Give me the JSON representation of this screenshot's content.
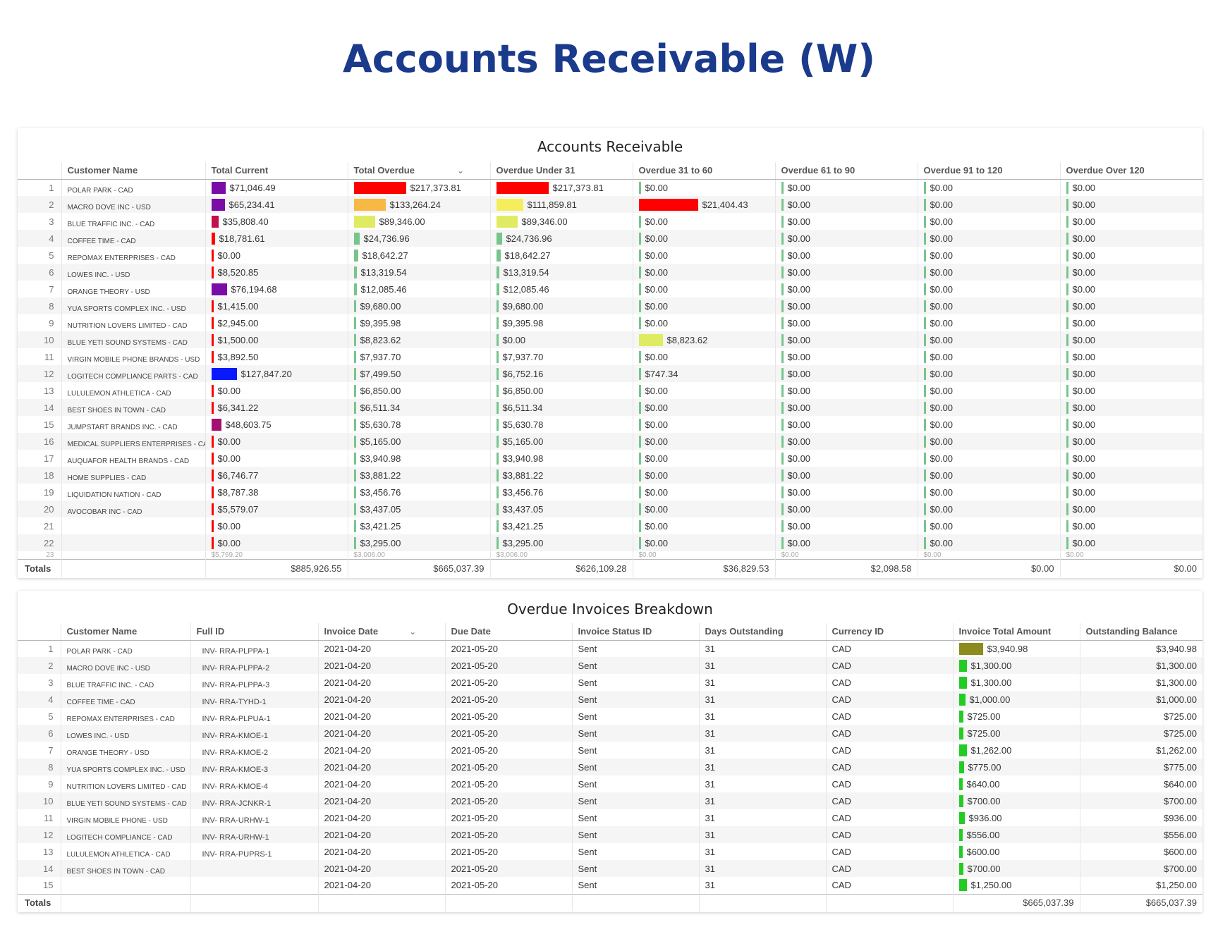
{
  "page": {
    "title": "Accounts Receivable (W)"
  },
  "colors": {
    "title": "#1a3a8c",
    "purple": "#7a0da6",
    "crimson": "#c0114b",
    "red": "#ff0000",
    "orange": "#f7b944",
    "yellow": "#f5ee5a",
    "lime": "#dfeb62",
    "green": "#77c58b",
    "blue": "#0a18ff",
    "magenta": "#a50f70",
    "olive": "#8b8b1e",
    "bright_green": "#22cc22"
  },
  "ar": {
    "title": "Accounts Receivable",
    "headers": [
      "Customer Name",
      "Total Current",
      "Total Overdue",
      "Overdue Under 31",
      "Overdue 31 to 60",
      "Overdue 61 to 90",
      "Overdue 91 to 120",
      "Overdue Over 120"
    ],
    "sort_icon": "chevron-down-icon",
    "rows": [
      {
        "n": "1",
        "name": "POLAR PARK - CAD",
        "tc": {
          "v": "$71,046.49",
          "w": 0.28,
          "c": "purple"
        },
        "to": {
          "v": "$217,373.81",
          "w": 1.0,
          "c": "red"
        },
        "u31": {
          "v": "$217,373.81",
          "w": 1.0,
          "c": "red"
        },
        "o60": {
          "v": "$0.00",
          "w": 0.01,
          "c": "green"
        },
        "o90": "$0.00",
        "o120": "$0.00",
        "over": "$0.00"
      },
      {
        "n": "2",
        "name": "MACRO DOVE INC - USD",
        "tc": {
          "v": "$65,234.41",
          "w": 0.26,
          "c": "purple"
        },
        "to": {
          "v": "$133,264.24",
          "w": 0.61,
          "c": "orange"
        },
        "u31": {
          "v": "$111,859.81",
          "w": 0.51,
          "c": "yellow"
        },
        "o60": {
          "v": "$21,404.43",
          "w": 1.0,
          "c": "red"
        },
        "o90": "$0.00",
        "o120": "$0.00",
        "over": "$0.00"
      },
      {
        "n": "3",
        "name": "BLUE TRAFFIC INC. - CAD",
        "tc": {
          "v": "$35,808.40",
          "w": 0.14,
          "c": "crimson"
        },
        "to": {
          "v": "$89,346.00",
          "w": 0.41,
          "c": "lime"
        },
        "u31": {
          "v": "$89,346.00",
          "w": 0.41,
          "c": "lime"
        },
        "o60": {
          "v": "$0.00",
          "w": 0.01,
          "c": "green"
        },
        "o90": "$0.00",
        "o120": "$0.00",
        "over": "$0.00"
      },
      {
        "n": "4",
        "name": "COFFEE TIME - CAD",
        "tc": {
          "v": "$18,781.61",
          "w": 0.07,
          "c": "red"
        },
        "to": {
          "v": "$24,736.96",
          "w": 0.11,
          "c": "green"
        },
        "u31": {
          "v": "$24,736.96",
          "w": 0.11,
          "c": "green"
        },
        "o60": {
          "v": "$0.00",
          "w": 0.01,
          "c": "green"
        },
        "o90": "$0.00",
        "o120": "$0.00",
        "over": "$0.00"
      },
      {
        "n": "5",
        "name": "REPOMAX ENTERPRISES - CAD",
        "tc": {
          "v": "$0.00",
          "w": 0.0,
          "c": "red"
        },
        "to": {
          "v": "$18,642.27",
          "w": 0.08,
          "c": "green"
        },
        "u31": {
          "v": "$18,642.27",
          "w": 0.08,
          "c": "green"
        },
        "o60": {
          "v": "$0.00",
          "w": 0.01,
          "c": "green"
        },
        "o90": "$0.00",
        "o120": "$0.00",
        "over": "$0.00"
      },
      {
        "n": "6",
        "name": "LOWES INC. - USD",
        "tc": {
          "v": "$8,520.85",
          "w": 0.03,
          "c": "red"
        },
        "to": {
          "v": "$13,319.54",
          "w": 0.06,
          "c": "green"
        },
        "u31": {
          "v": "$13,319.54",
          "w": 0.06,
          "c": "green"
        },
        "o60": {
          "v": "$0.00",
          "w": 0.01,
          "c": "green"
        },
        "o90": "$0.00",
        "o120": "$0.00",
        "over": "$0.00"
      },
      {
        "n": "7",
        "name": "ORANGE THEORY - USD",
        "tc": {
          "v": "$76,194.68",
          "w": 0.3,
          "c": "purple"
        },
        "to": {
          "v": "$12,085.46",
          "w": 0.05,
          "c": "green"
        },
        "u31": {
          "v": "$12,085.46",
          "w": 0.05,
          "c": "green"
        },
        "o60": {
          "v": "$0.00",
          "w": 0.01,
          "c": "green"
        },
        "o90": "$0.00",
        "o120": "$0.00",
        "over": "$0.00"
      },
      {
        "n": "8",
        "name": "YUA SPORTS COMPLEX INC. - USD",
        "tc": {
          "v": "$1,415.00",
          "w": 0.01,
          "c": "red"
        },
        "to": {
          "v": "$9,680.00",
          "w": 0.04,
          "c": "green"
        },
        "u31": {
          "v": "$9,680.00",
          "w": 0.04,
          "c": "green"
        },
        "o60": {
          "v": "$0.00",
          "w": 0.01,
          "c": "green"
        },
        "o90": "$0.00",
        "o120": "$0.00",
        "over": "$0.00"
      },
      {
        "n": "9",
        "name": "NUTRITION LOVERS LIMITED - CAD",
        "tc": {
          "v": "$2,945.00",
          "w": 0.01,
          "c": "red"
        },
        "to": {
          "v": "$9,395.98",
          "w": 0.04,
          "c": "green"
        },
        "u31": {
          "v": "$9,395.98",
          "w": 0.04,
          "c": "green"
        },
        "o60": {
          "v": "$0.00",
          "w": 0.01,
          "c": "green"
        },
        "o90": "$0.00",
        "o120": "$0.00",
        "over": "$0.00"
      },
      {
        "n": "10",
        "name": "BLUE YETI SOUND SYSTEMS - CAD",
        "tc": {
          "v": "$1,500.00",
          "w": 0.01,
          "c": "red"
        },
        "to": {
          "v": "$8,823.62",
          "w": 0.04,
          "c": "green"
        },
        "u31": {
          "v": "$0.00",
          "w": 0.01,
          "c": "green"
        },
        "o60": {
          "v": "$8,823.62",
          "w": 0.41,
          "c": "lime"
        },
        "o90": "$0.00",
        "o120": "$0.00",
        "over": "$0.00"
      },
      {
        "n": "11",
        "name": "VIRGIN MOBILE PHONE BRANDS - USD",
        "tc": {
          "v": "$3,892.50",
          "w": 0.02,
          "c": "red"
        },
        "to": {
          "v": "$7,937.70",
          "w": 0.04,
          "c": "green"
        },
        "u31": {
          "v": "$7,937.70",
          "w": 0.04,
          "c": "green"
        },
        "o60": {
          "v": "$0.00",
          "w": 0.01,
          "c": "green"
        },
        "o90": "$0.00",
        "o120": "$0.00",
        "over": "$0.00"
      },
      {
        "n": "12",
        "name": "LOGITECH COMPLIANCE PARTS - CAD",
        "tc": {
          "v": "$127,847.20",
          "w": 0.5,
          "c": "blue"
        },
        "to": {
          "v": "$7,499.50",
          "w": 0.03,
          "c": "green"
        },
        "u31": {
          "v": "$6,752.16",
          "w": 0.03,
          "c": "green"
        },
        "o60": {
          "v": "$747.34",
          "w": 0.03,
          "c": "green"
        },
        "o90": "$0.00",
        "o120": "$0.00",
        "over": "$0.00"
      },
      {
        "n": "13",
        "name": "LULULEMON ATHLETICA - CAD",
        "tc": {
          "v": "$0.00",
          "w": 0.0,
          "c": "red"
        },
        "to": {
          "v": "$6,850.00",
          "w": 0.03,
          "c": "green"
        },
        "u31": {
          "v": "$6,850.00",
          "w": 0.03,
          "c": "green"
        },
        "o60": {
          "v": "$0.00",
          "w": 0.01,
          "c": "green"
        },
        "o90": "$0.00",
        "o120": "$0.00",
        "over": "$0.00"
      },
      {
        "n": "14",
        "name": "BEST SHOES IN TOWN - CAD",
        "tc": {
          "v": "$6,341.22",
          "w": 0.02,
          "c": "red"
        },
        "to": {
          "v": "$6,511.34",
          "w": 0.03,
          "c": "green"
        },
        "u31": {
          "v": "$6,511.34",
          "w": 0.03,
          "c": "green"
        },
        "o60": {
          "v": "$0.00",
          "w": 0.01,
          "c": "green"
        },
        "o90": "$0.00",
        "o120": "$0.00",
        "over": "$0.00"
      },
      {
        "n": "15",
        "name": "JUMPSTART BRANDS INC. - CAD",
        "tc": {
          "v": "$48,603.75",
          "w": 0.19,
          "c": "magenta"
        },
        "to": {
          "v": "$5,630.78",
          "w": 0.03,
          "c": "green"
        },
        "u31": {
          "v": "$5,630.78",
          "w": 0.03,
          "c": "green"
        },
        "o60": {
          "v": "$0.00",
          "w": 0.01,
          "c": "green"
        },
        "o90": "$0.00",
        "o120": "$0.00",
        "over": "$0.00"
      },
      {
        "n": "16",
        "name": "MEDICAL SUPPLIERS ENTERPRISES - CAD",
        "tc": {
          "v": "$0.00",
          "w": 0.0,
          "c": "red"
        },
        "to": {
          "v": "$5,165.00",
          "w": 0.02,
          "c": "green"
        },
        "u31": {
          "v": "$5,165.00",
          "w": 0.02,
          "c": "green"
        },
        "o60": {
          "v": "$0.00",
          "w": 0.01,
          "c": "green"
        },
        "o90": "$0.00",
        "o120": "$0.00",
        "over": "$0.00"
      },
      {
        "n": "17",
        "name": "AUQUAFOR HEALTH BRANDS - CAD",
        "tc": {
          "v": "$0.00",
          "w": 0.0,
          "c": "red"
        },
        "to": {
          "v": "$3,940.98",
          "w": 0.02,
          "c": "green"
        },
        "u31": {
          "v": "$3,940.98",
          "w": 0.02,
          "c": "green"
        },
        "o60": {
          "v": "$0.00",
          "w": 0.01,
          "c": "green"
        },
        "o90": "$0.00",
        "o120": "$0.00",
        "over": "$0.00"
      },
      {
        "n": "18",
        "name": "HOME SUPPLIES - CAD",
        "tc": {
          "v": "$6,746.77",
          "w": 0.03,
          "c": "red"
        },
        "to": {
          "v": "$3,881.22",
          "w": 0.02,
          "c": "green"
        },
        "u31": {
          "v": "$3,881.22",
          "w": 0.02,
          "c": "green"
        },
        "o60": {
          "v": "$0.00",
          "w": 0.01,
          "c": "green"
        },
        "o90": "$0.00",
        "o120": "$0.00",
        "over": "$0.00"
      },
      {
        "n": "19",
        "name": "LIQUIDATION NATION - CAD",
        "tc": {
          "v": "$8,787.38",
          "w": 0.03,
          "c": "red"
        },
        "to": {
          "v": "$3,456.76",
          "w": 0.02,
          "c": "green"
        },
        "u31": {
          "v": "$3,456.76",
          "w": 0.02,
          "c": "green"
        },
        "o60": {
          "v": "$0.00",
          "w": 0.01,
          "c": "green"
        },
        "o90": "$0.00",
        "o120": "$0.00",
        "over": "$0.00"
      },
      {
        "n": "20",
        "name": "AVOCOBAR INC - CAD",
        "tc": {
          "v": "$5,579.07",
          "w": 0.02,
          "c": "red"
        },
        "to": {
          "v": "$3,437.05",
          "w": 0.02,
          "c": "green"
        },
        "u31": {
          "v": "$3,437.05",
          "w": 0.02,
          "c": "green"
        },
        "o60": {
          "v": "$0.00",
          "w": 0.01,
          "c": "green"
        },
        "o90": "$0.00",
        "o120": "$0.00",
        "over": "$0.00"
      },
      {
        "n": "21",
        "name": "",
        "tc": {
          "v": "$0.00",
          "w": 0.0,
          "c": "red"
        },
        "to": {
          "v": "$3,421.25",
          "w": 0.02,
          "c": "green"
        },
        "u31": {
          "v": "$3,421.25",
          "w": 0.02,
          "c": "green"
        },
        "o60": {
          "v": "$0.00",
          "w": 0.01,
          "c": "green"
        },
        "o90": "$0.00",
        "o120": "$0.00",
        "over": "$0.00"
      },
      {
        "n": "22",
        "name": "",
        "tc": {
          "v": "$0.00",
          "w": 0.0,
          "c": "red"
        },
        "to": {
          "v": "$3,295.00",
          "w": 0.02,
          "c": "green"
        },
        "u31": {
          "v": "$3,295.00",
          "w": 0.02,
          "c": "green"
        },
        "o60": {
          "v": "$0.00",
          "w": 0.01,
          "c": "green"
        },
        "o90": "$0.00",
        "o120": "$0.00",
        "over": "$0.00"
      }
    ],
    "partial_row": {
      "n": "23",
      "tc": "$5,769.20",
      "to": "$3,006.00",
      "u31": "$3,006.00",
      "o60": "$0.00",
      "o90": "$0.00",
      "o120": "$0.00",
      "over": "$0.00"
    },
    "totals": {
      "label": "Totals",
      "tc": "$885,926.55",
      "to": "$665,037.39",
      "u31": "$626,109.28",
      "o60": "$36,829.53",
      "o90": "$2,098.58",
      "o120": "$0.00",
      "over": "$0.00"
    }
  },
  "od": {
    "title": "Overdue Invoices Breakdown",
    "headers": [
      "Customer Name",
      "Full ID",
      "Invoice Date",
      "Due Date",
      "Invoice Status ID",
      "Days Outstanding",
      "Currency ID",
      "Invoice Total Amount",
      "Outstanding Balance"
    ],
    "sort_icon": "chevron-down-icon",
    "rows": [
      {
        "n": "1",
        "name": "POLAR PARK - CAD",
        "id": "INV- RRA-PLPPA-1",
        "idate": "2021-04-20",
        "due": "2021-05-20",
        "status": "Sent",
        "days": "31",
        "cur": "CAD",
        "amt": {
          "v": "$3,940.98",
          "w": 1.0,
          "c": "olive"
        },
        "bal": "$3,940.98"
      },
      {
        "n": "2",
        "name": "MACRO DOVE INC - USD",
        "id": "INV- RRA-PLPPA-2",
        "idate": "2021-04-20",
        "due": "2021-05-20",
        "status": "Sent",
        "days": "31",
        "cur": "CAD",
        "amt": {
          "v": "$1,300.00",
          "w": 0.33,
          "c": "bright_green"
        },
        "bal": "$1,300.00"
      },
      {
        "n": "3",
        "name": "BLUE TRAFFIC INC. - CAD",
        "id": "INV- RRA-PLPPA-3",
        "idate": "2021-04-20",
        "due": "2021-05-20",
        "status": "Sent",
        "days": "31",
        "cur": "CAD",
        "amt": {
          "v": "$1,300.00",
          "w": 0.33,
          "c": "bright_green"
        },
        "bal": "$1,300.00"
      },
      {
        "n": "4",
        "name": "COFFEE TIME - CAD",
        "id": "INV- RRA-TYHD-1",
        "idate": "2021-04-20",
        "due": "2021-05-20",
        "status": "Sent",
        "days": "31",
        "cur": "CAD",
        "amt": {
          "v": "$1,000.00",
          "w": 0.25,
          "c": "bright_green"
        },
        "bal": "$1,000.00"
      },
      {
        "n": "5",
        "name": "REPOMAX ENTERPRISES - CAD",
        "id": "INV- RRA-PLPUA-1",
        "idate": "2021-04-20",
        "due": "2021-05-20",
        "status": "Sent",
        "days": "31",
        "cur": "CAD",
        "amt": {
          "v": "$725.00",
          "w": 0.18,
          "c": "bright_green"
        },
        "bal": "$725.00"
      },
      {
        "n": "6",
        "name": "LOWES INC. - USD",
        "id": "INV- RRA-KMOE-1",
        "idate": "2021-04-20",
        "due": "2021-05-20",
        "status": "Sent",
        "days": "31",
        "cur": "CAD",
        "amt": {
          "v": "$725.00",
          "w": 0.18,
          "c": "bright_green"
        },
        "bal": "$725.00"
      },
      {
        "n": "7",
        "name": "ORANGE THEORY - USD",
        "id": "INV- RRA-KMOE-2",
        "idate": "2021-04-20",
        "due": "2021-05-20",
        "status": "Sent",
        "days": "31",
        "cur": "CAD",
        "amt": {
          "v": "$1,262.00",
          "w": 0.32,
          "c": "bright_green"
        },
        "bal": "$1,262.00"
      },
      {
        "n": "8",
        "name": "YUA SPORTS COMPLEX INC. - USD",
        "id": "INV- RRA-KMOE-3",
        "idate": "2021-04-20",
        "due": "2021-05-20",
        "status": "Sent",
        "days": "31",
        "cur": "CAD",
        "amt": {
          "v": "$775.00",
          "w": 0.2,
          "c": "bright_green"
        },
        "bal": "$775.00"
      },
      {
        "n": "9",
        "name": "NUTRITION LOVERS LIMITED - CAD",
        "id": "INV- RRA-KMOE-4",
        "idate": "2021-04-20",
        "due": "2021-05-20",
        "status": "Sent",
        "days": "31",
        "cur": "CAD",
        "amt": {
          "v": "$640.00",
          "w": 0.16,
          "c": "bright_green"
        },
        "bal": "$640.00"
      },
      {
        "n": "10",
        "name": "BLUE YETI SOUND SYSTEMS - CAD",
        "id": "INV- RRA-JCNKR-1",
        "idate": "2021-04-20",
        "due": "2021-05-20",
        "status": "Sent",
        "days": "31",
        "cur": "CAD",
        "amt": {
          "v": "$700.00",
          "w": 0.18,
          "c": "bright_green"
        },
        "bal": "$700.00"
      },
      {
        "n": "11",
        "name": "VIRGIN MOBILE PHONE  - USD",
        "id": "INV- RRA-URHW-1",
        "idate": "2021-04-20",
        "due": "2021-05-20",
        "status": "Sent",
        "days": "31",
        "cur": "CAD",
        "amt": {
          "v": "$936.00",
          "w": 0.24,
          "c": "bright_green"
        },
        "bal": "$936.00"
      },
      {
        "n": "12",
        "name": "LOGITECH COMPLIANCE  - CAD",
        "id": "INV- RRA-URHW-1",
        "idate": "2021-04-20",
        "due": "2021-05-20",
        "status": "Sent",
        "days": "31",
        "cur": "CAD",
        "amt": {
          "v": "$556.00",
          "w": 0.14,
          "c": "bright_green"
        },
        "bal": "$556.00"
      },
      {
        "n": "13",
        "name": "LULULEMON ATHLETICA - CAD",
        "id": "INV- RRA-PUPRS-1",
        "idate": "2021-04-20",
        "due": "2021-05-20",
        "status": "Sent",
        "days": "31",
        "cur": "CAD",
        "amt": {
          "v": "$600.00",
          "w": 0.15,
          "c": "bright_green"
        },
        "bal": "$600.00"
      },
      {
        "n": "14",
        "name": "BEST SHOES IN TOWN - CAD",
        "id": "",
        "idate": "2021-04-20",
        "due": "2021-05-20",
        "status": "Sent",
        "days": "31",
        "cur": "CAD",
        "amt": {
          "v": "$700.00",
          "w": 0.18,
          "c": "bright_green"
        },
        "bal": "$700.00"
      },
      {
        "n": "15",
        "name": "",
        "id": "",
        "idate": "2021-04-20",
        "due": "2021-05-20",
        "status": "Sent",
        "days": "31",
        "cur": "CAD",
        "amt": {
          "v": "$1,250.00",
          "w": 0.32,
          "c": "bright_green"
        },
        "bal": "$1,250.00"
      }
    ],
    "totals": {
      "label": "Totals",
      "amt": "$665,037.39",
      "bal": "$665,037.39"
    }
  }
}
